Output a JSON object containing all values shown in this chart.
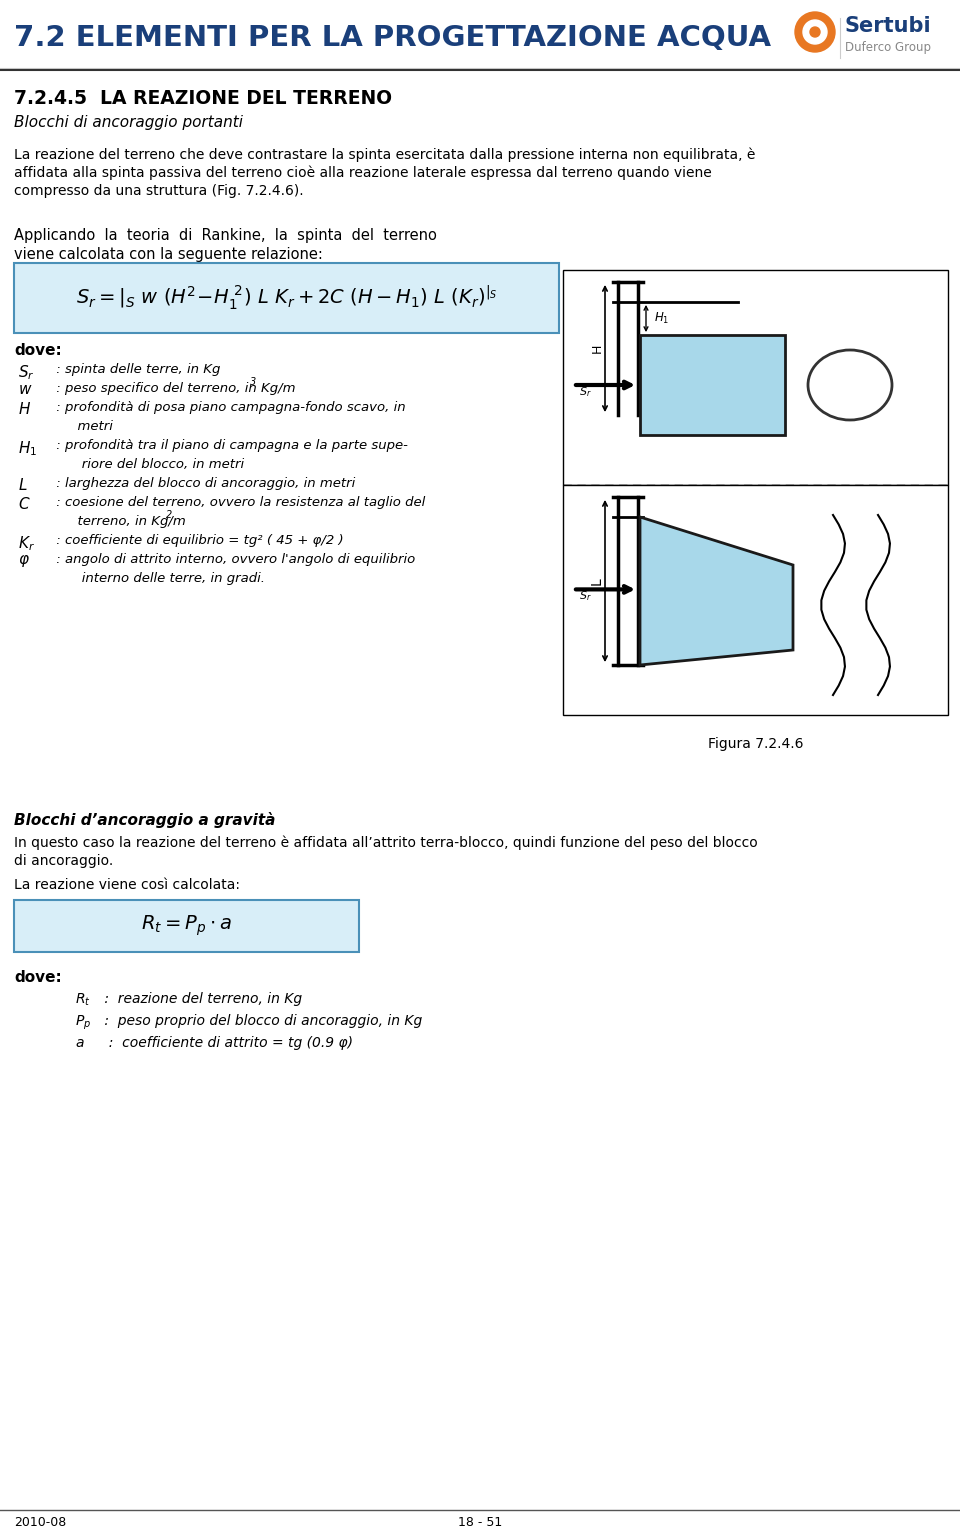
{
  "title": "7.2 ELEMENTI PER LA PROGETTAZIONE ACQUA",
  "section_title": "7.2.4.5  LA REAZIONE DEL TERRENO",
  "section_subtitle": "Blocchi di ancoraggio portanti",
  "intro_text": "La reazione del terreno che deve contrastare la spinta esercitata dalla pressione interna non equilibrata, è\naffidata alla spinta passiva del terreno cioè alla reazione laterale espressa dal terreno quando viene\ncompresso da una struttura (Fig. 7.2.4.6).",
  "rankine_text_line1": "Applicando  la  teoria  di  Rankine,  la  spinta  del  terreno",
  "rankine_text_line2": "viene calcolata con la seguente relazione:",
  "dove1": "dove:",
  "def1_items": [
    [
      "S_r",
      " : spinta delle terre, in Kg"
    ],
    [
      "w",
      " : peso specifico del terreno, in Kg/m"
    ],
    [
      "H",
      " : profondità di posa piano campagna-fondo scavo, in"
    ],
    [
      "",
      "      metri"
    ],
    [
      "H_1",
      " : profondità tra il piano di campagna e la parte supe-"
    ],
    [
      "",
      "       riore del blocco, in metri"
    ],
    [
      "L",
      " : larghezza del blocco di ancoraggio, in metri"
    ],
    [
      "C",
      " : coesione del terreno, ovvero la resistenza al taglio del"
    ],
    [
      "",
      "      terreno, in Kg/m"
    ],
    [
      "K_r",
      " : coefficiente di equilibrio = tg² ( 45 + φ/2 )"
    ],
    [
      "φ",
      " : angolo di attrito interno, ovvero l'angolo di equilibrio"
    ],
    [
      "",
      "       interno delle terre, in gradi."
    ]
  ],
  "figura_label": "Figura 7.2.4.6",
  "gravity_title": "Blocchi d’ancoraggio a gravità",
  "gravity_text_line1": "In questo caso la reazione del terreno è affidata all’attrito terra-blocco, quindi funzione del peso del blocco",
  "gravity_text_line2": "di ancoraggio.",
  "calc_text": "La reazione viene così calcolata:",
  "dove2": "dove:",
  "footer_left": "2010-08",
  "footer_center": "18 - 51",
  "header_color": "#1a3f7a",
  "orange_color": "#e87722",
  "formula_bg": "#d8eef8",
  "formula_border": "#4a90b8",
  "light_blue": "#a8d8ea"
}
